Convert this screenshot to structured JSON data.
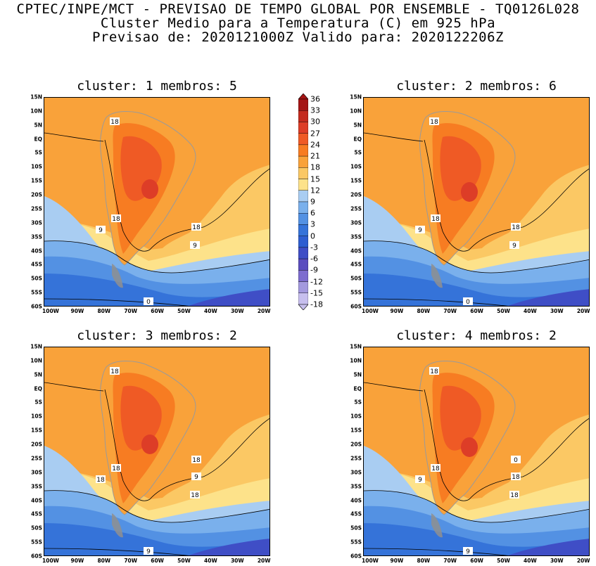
{
  "header": {
    "line1": "CPTEC/INPE/MCT - PREVISAO DE TEMPO GLOBAL POR ENSEMBLE - TQ0126L028",
    "line2": "Cluster Medio para a Temperatura (C) em 925 hPa",
    "line3": "Previsao de: 2020121000Z   Valido para: 2020122206Z"
  },
  "panels": [
    {
      "title": "cluster: 1  membros: 5",
      "contour_labels": [
        "18",
        "18",
        "9",
        "18",
        "9",
        "0"
      ]
    },
    {
      "title": "cluster: 2  membros: 6",
      "contour_labels": [
        "18",
        "18",
        "9",
        "18",
        "9",
        "0"
      ]
    },
    {
      "title": "cluster: 3  membros: 2",
      "contour_labels": [
        "18",
        "18",
        "18",
        "9",
        "18",
        "9",
        "18"
      ]
    },
    {
      "title": "cluster: 4  membros: 2",
      "contour_labels": [
        "18",
        "18",
        "9",
        "18",
        "18",
        "9",
        "0"
      ]
    }
  ],
  "lat_labels": [
    "15N",
    "10N",
    "5N",
    "EQ",
    "5S",
    "10S",
    "15S",
    "20S",
    "25S",
    "30S",
    "35S",
    "40S",
    "45S",
    "50S",
    "55S",
    "60S"
  ],
  "lon_labels": [
    "100W",
    "90W",
    "80W",
    "70W",
    "60W",
    "50W",
    "40W",
    "30W",
    "20W"
  ],
  "colorbar": {
    "labels": [
      "36",
      "33",
      "30",
      "27",
      "24",
      "21",
      "18",
      "15",
      "12",
      "9",
      "6",
      "3",
      "0",
      "-3",
      "-6",
      "-9",
      "-12",
      "-15",
      "-18"
    ],
    "colors": [
      "#a51414",
      "#c42a1e",
      "#dd3d27",
      "#ef5a25",
      "#f77c22",
      "#f9a23a",
      "#fbc864",
      "#fde28a",
      "#a9cdf2",
      "#7ab0ec",
      "#5391e3",
      "#3573d9",
      "#2e5ed1",
      "#3f4ec6",
      "#5a4dbf",
      "#7d6ccf",
      "#a399de",
      "#c7bfee"
    ]
  }
}
